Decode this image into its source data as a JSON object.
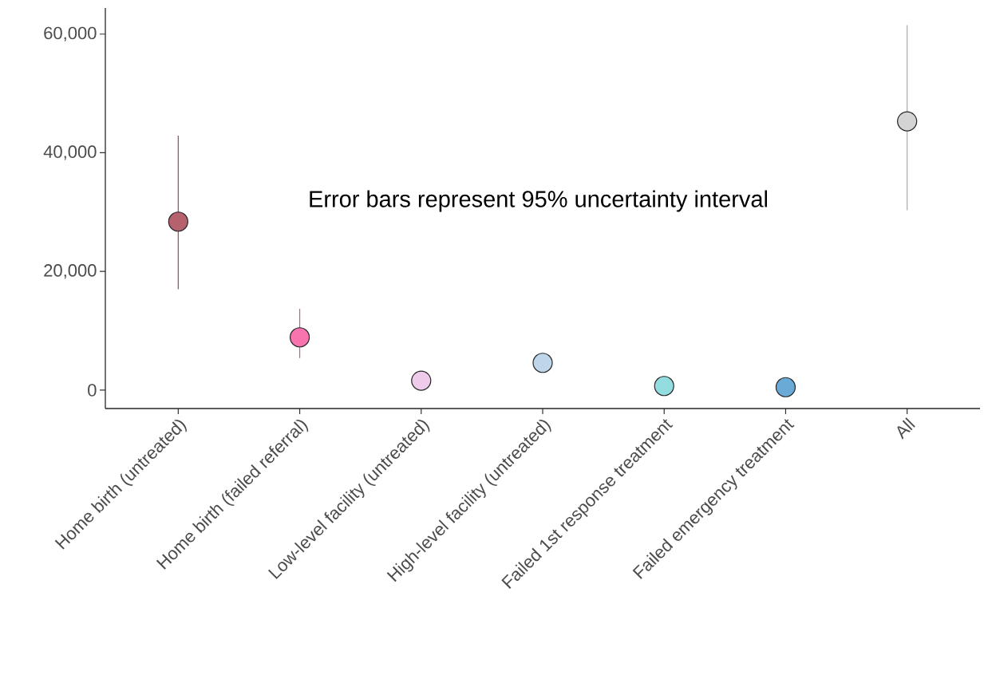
{
  "chart_data": {
    "type": "scatter",
    "categories": [
      "Home birth (untreated)",
      "Home birth (failed referral)",
      "Low-level facility (untreated)",
      "High-level facility (untreated)",
      "Failed 1st response treatment",
      "Failed emergency treatment",
      "All"
    ],
    "values": [
      28400,
      8900,
      1600,
      4600,
      700,
      500,
      45300
    ],
    "errors": [
      [
        17000,
        42900
      ],
      [
        5400,
        13700
      ],
      null,
      null,
      null,
      null,
      [
        30300,
        61500
      ]
    ],
    "colors": [
      "#b5616e",
      "#f774ae",
      "#eecbea",
      "#bdd6ea",
      "#93dde0",
      "#6aaad6",
      "#d4d4d4"
    ],
    "ylim": [
      -3100,
      64400
    ],
    "yticks": [
      {
        "value": 0,
        "label": "0"
      },
      {
        "value": 20000,
        "label": "20,000"
      },
      {
        "value": 40000,
        "label": "40,000"
      },
      {
        "value": 60000,
        "label": "60,000"
      }
    ],
    "grid": false,
    "annotations": [
      "Error bars represent 95% uncertainty interval"
    ]
  }
}
